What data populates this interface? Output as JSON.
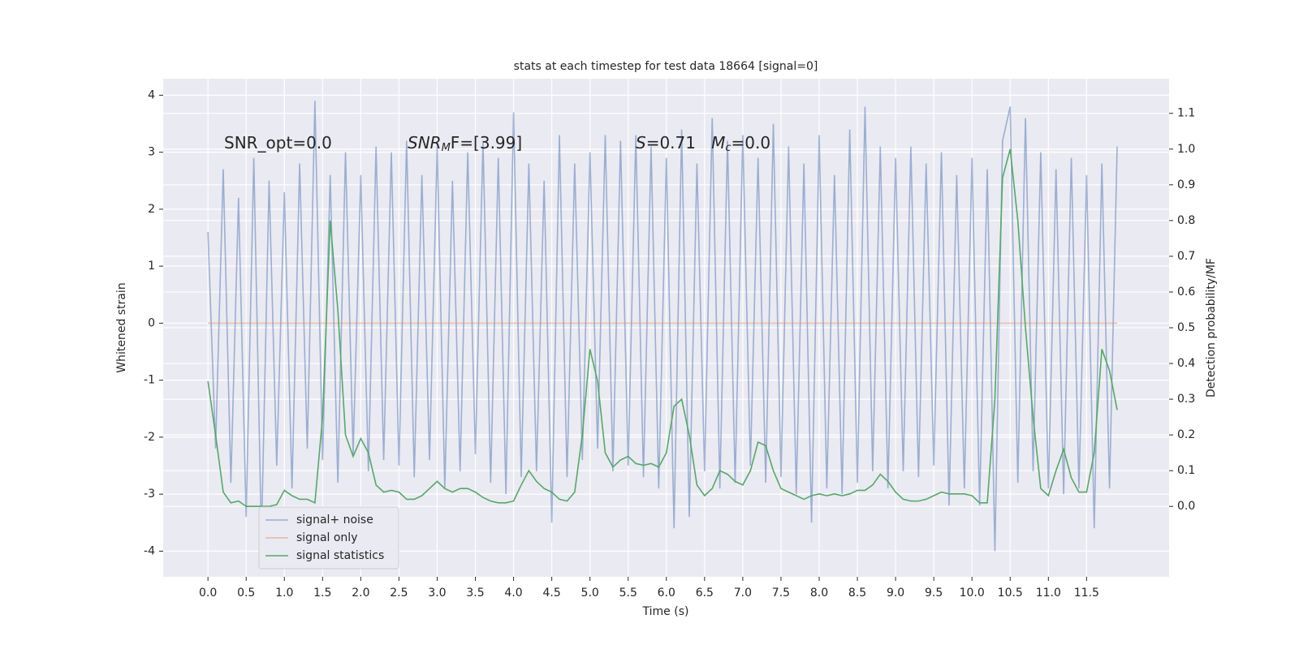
{
  "chart_data": {
    "type": "line",
    "title": "stats at each timestep for test data 18664 [signal=0]",
    "x_label": "Time (s)",
    "y_label": "Whitened strain",
    "y2_label": "Detection probability/MF",
    "annotations": [
      {
        "parts": [
          "SNR_opt=0.0"
        ]
      },
      {
        "parts": [
          "SNR",
          "M",
          "F=[3.99]"
        ]
      },
      {
        "parts": [
          "S",
          "=0.71   ",
          "M",
          "c",
          "=0.0"
        ]
      }
    ],
    "background": "#eaeaf2",
    "grid": true,
    "legend": "lower left",
    "xlim": [
      -0.586,
      12.58
    ],
    "xticks": [
      {
        "value": 0,
        "label": "0.0"
      },
      0.5,
      {
        "value": 1,
        "label": "1.0"
      },
      1.5,
      {
        "value": 2,
        "label": "2.0"
      },
      2.5,
      {
        "value": 3,
        "label": "3.0"
      },
      3.5,
      {
        "value": 4,
        "label": "4.0"
      },
      4.5,
      {
        "value": 5,
        "label": "5.0"
      },
      5.5,
      {
        "value": 6,
        "label": "6.0"
      },
      6.5,
      {
        "value": 7,
        "label": "7.0"
      },
      7.5,
      {
        "value": 8,
        "label": "8.0"
      },
      8.5,
      {
        "value": 9,
        "label": "9.0"
      },
      9.5,
      {
        "value": 10,
        "label": "10.0"
      },
      10.5,
      {
        "value": 11,
        "label": "11.0"
      },
      11.5
    ],
    "ylim": [
      -4.45,
      4.29
    ],
    "yticks": [
      -4,
      -3,
      -2,
      -1,
      0,
      1,
      2,
      3,
      4
    ],
    "y2lim": [
      -0.197,
      1.197
    ],
    "y2ticks": [
      {
        "value": 0,
        "label": "0.0"
      },
      0.1,
      0.2,
      0.3,
      0.4,
      0.5,
      0.6,
      0.7,
      0.8,
      0.9,
      {
        "value": 1,
        "label": "1.0"
      },
      1.1
    ],
    "x": [
      0,
      0.1,
      0.2,
      0.3,
      0.4,
      0.5,
      0.6,
      0.7,
      0.8,
      0.9,
      1,
      1.1,
      1.2,
      1.3,
      1.4,
      1.5,
      1.6,
      1.7,
      1.8,
      1.9,
      2,
      2.1,
      2.2,
      2.3,
      2.4,
      2.5,
      2.6,
      2.7,
      2.8,
      2.9,
      3,
      3.1,
      3.2,
      3.3,
      3.4,
      3.5,
      3.6,
      3.7,
      3.8,
      3.9,
      4,
      4.1,
      4.2,
      4.3,
      4.4,
      4.5,
      4.6,
      4.7,
      4.8,
      4.9,
      5,
      5.1,
      5.2,
      5.3,
      5.4,
      5.5,
      5.6,
      5.7,
      5.8,
      5.9,
      6,
      6.1,
      6.2,
      6.3,
      6.4,
      6.5,
      6.6,
      6.7,
      6.8,
      6.9,
      7,
      7.1,
      7.2,
      7.3,
      7.4,
      7.5,
      7.6,
      7.7,
      7.8,
      7.9,
      8,
      8.1,
      8.2,
      8.3,
      8.4,
      8.5,
      8.6,
      8.7,
      8.8,
      8.9,
      9,
      9.1,
      9.2,
      9.3,
      9.4,
      9.5,
      9.6,
      9.7,
      9.8,
      9.9,
      10,
      10.1,
      10.2,
      10.3,
      10.4,
      10.5,
      10.6,
      10.7,
      10.8,
      10.9,
      11,
      11.1,
      11.2,
      11.3,
      11.4,
      11.5,
      11.6,
      11.7,
      11.8,
      11.9
    ],
    "series": [
      {
        "name": "signal+ noise",
        "color": "#4c72b0",
        "opacity": 0.5,
        "values": [
          1.6,
          -2.2,
          2.7,
          -2.8,
          2.2,
          -3.4,
          2.9,
          -3.8,
          2.5,
          -2.5,
          2.3,
          -2.9,
          2.8,
          -2.2,
          3.9,
          -2.4,
          2.6,
          -2.8,
          3.0,
          -2.3,
          2.6,
          -2.6,
          3.1,
          -2.4,
          3.0,
          -2.5,
          3.2,
          -2.7,
          2.6,
          -2.4,
          3.1,
          -2.9,
          2.5,
          -2.6,
          3.0,
          -2.3,
          3.2,
          -2.8,
          2.9,
          -3.0,
          3.7,
          -2.7,
          2.8,
          -2.6,
          2.5,
          -3.5,
          3.3,
          -2.7,
          2.8,
          -2.4,
          3.0,
          -2.2,
          3.3,
          -2.6,
          3.2,
          -2.5,
          3.3,
          -2.7,
          3.1,
          -2.9,
          2.9,
          -3.6,
          3.4,
          -3.4,
          2.8,
          -2.6,
          3.6,
          -2.9,
          3.2,
          -2.8,
          3.3,
          -2.5,
          2.9,
          -2.8,
          3.5,
          -2.7,
          3.1,
          -3.0,
          2.8,
          -3.5,
          3.3,
          -2.9,
          2.6,
          -3.0,
          3.4,
          -2.8,
          3.8,
          -2.6,
          3.1,
          -2.9,
          2.9,
          -2.6,
          3.1,
          -2.7,
          2.8,
          -2.5,
          3.0,
          -3.2,
          2.6,
          -2.9,
          2.9,
          -3.2,
          2.7,
          -4.0,
          3.2,
          3.8,
          -2.8,
          3.6,
          -2.6,
          3.0,
          -2.9,
          2.7,
          -3.0,
          2.9,
          -2.9,
          2.6,
          -3.6,
          2.8,
          -2.9,
          3.1
        ]
      },
      {
        "name": "signal only",
        "color": "#dd8452",
        "opacity": 0.5,
        "values": [
          0,
          0,
          0,
          0,
          0,
          0,
          0,
          0,
          0,
          0,
          0,
          0,
          0,
          0,
          0,
          0,
          0,
          0,
          0,
          0,
          0,
          0,
          0,
          0,
          0,
          0,
          0,
          0,
          0,
          0,
          0,
          0,
          0,
          0,
          0,
          0,
          0,
          0,
          0,
          0,
          0,
          0,
          0,
          0,
          0,
          0,
          0,
          0,
          0,
          0,
          0,
          0,
          0,
          0,
          0,
          0,
          0,
          0,
          0,
          0,
          0,
          0,
          0,
          0,
          0,
          0,
          0,
          0,
          0,
          0,
          0,
          0,
          0,
          0,
          0,
          0,
          0,
          0,
          0,
          0,
          0,
          0,
          0,
          0,
          0,
          0,
          0,
          0,
          0,
          0,
          0,
          0,
          0,
          0,
          0,
          0,
          0,
          0,
          0,
          0,
          0,
          0,
          0,
          0,
          0,
          0,
          0,
          0,
          0,
          0,
          0,
          0,
          0,
          0,
          0,
          0,
          0,
          0,
          0,
          0
        ]
      },
      {
        "name": "signal statistics",
        "color": "#55a868",
        "opacity": 1,
        "axis": "y2",
        "values": [
          0.35,
          0.2,
          0.04,
          0.01,
          0.015,
          0,
          0,
          0,
          0,
          0.005,
          0.045,
          0.03,
          0.02,
          0.02,
          0.01,
          0.25,
          0.8,
          0.55,
          0.2,
          0.14,
          0.19,
          0.15,
          0.06,
          0.04,
          0.045,
          0.04,
          0.02,
          0.02,
          0.03,
          0.05,
          0.07,
          0.05,
          0.04,
          0.05,
          0.05,
          0.04,
          0.025,
          0.015,
          0.01,
          0.01,
          0.015,
          0.06,
          0.1,
          0.07,
          0.05,
          0.04,
          0.02,
          0.015,
          0.04,
          0.2,
          0.44,
          0.35,
          0.15,
          0.11,
          0.13,
          0.14,
          0.12,
          0.115,
          0.12,
          0.11,
          0.15,
          0.28,
          0.3,
          0.2,
          0.06,
          0.03,
          0.05,
          0.1,
          0.09,
          0.07,
          0.06,
          0.1,
          0.18,
          0.17,
          0.1,
          0.05,
          0.04,
          0.03,
          0.02,
          0.03,
          0.035,
          0.03,
          0.035,
          0.03,
          0.035,
          0.045,
          0.045,
          0.06,
          0.09,
          0.07,
          0.04,
          0.02,
          0.015,
          0.015,
          0.02,
          0.03,
          0.04,
          0.035,
          0.035,
          0.035,
          0.03,
          0.01,
          0.01,
          0.3,
          0.92,
          1.0,
          0.8,
          0.5,
          0.25,
          0.05,
          0.03,
          0.1,
          0.16,
          0.08,
          0.04,
          0.04,
          0.15,
          0.44,
          0.38,
          0.27
        ]
      }
    ]
  }
}
